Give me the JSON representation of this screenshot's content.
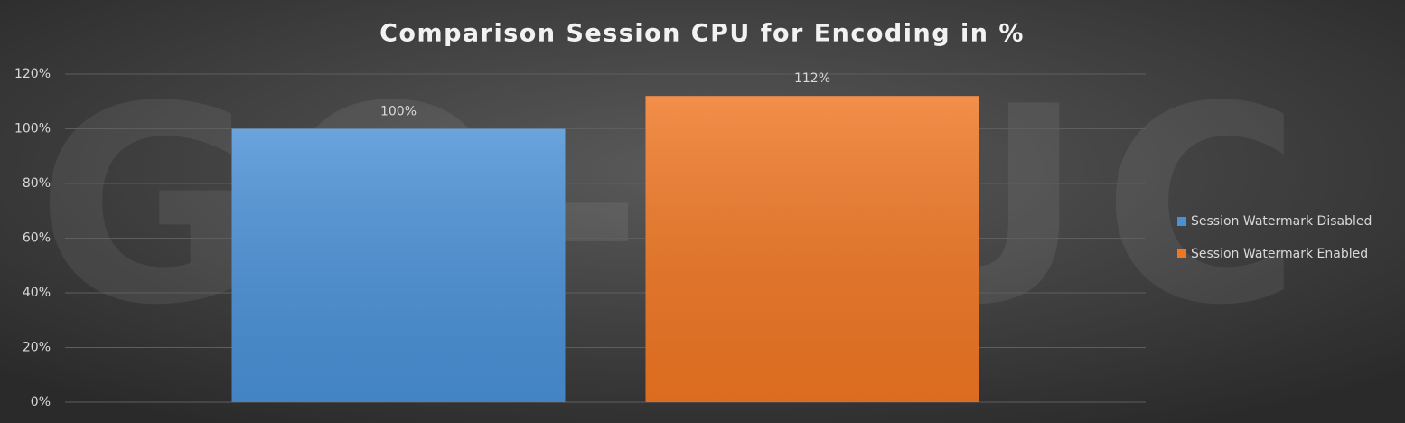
{
  "chart_data": {
    "type": "bar",
    "title": "Comparison Session CPU for Encoding in %",
    "watermark": "GO-EUC",
    "categories": [
      null
    ],
    "series": [
      {
        "name": "Session Watermark Disabled",
        "color": "#4a90d6",
        "values": [
          100
        ],
        "value_labels": [
          "100%"
        ]
      },
      {
        "name": "Session Watermark Enabled",
        "color": "#ef7623",
        "values": [
          112
        ],
        "value_labels": [
          "112%"
        ]
      }
    ],
    "ylim": [
      0,
      120
    ],
    "yticks": [
      {
        "value": 0,
        "label": "0%"
      },
      {
        "value": 20,
        "label": "20%"
      },
      {
        "value": 40,
        "label": "40%"
      },
      {
        "value": 60,
        "label": "60%"
      },
      {
        "value": 80,
        "label": "80%"
      },
      {
        "value": 100,
        "label": "100%"
      },
      {
        "value": 120,
        "label": "120%"
      }
    ],
    "grid": true,
    "legend": "right"
  }
}
